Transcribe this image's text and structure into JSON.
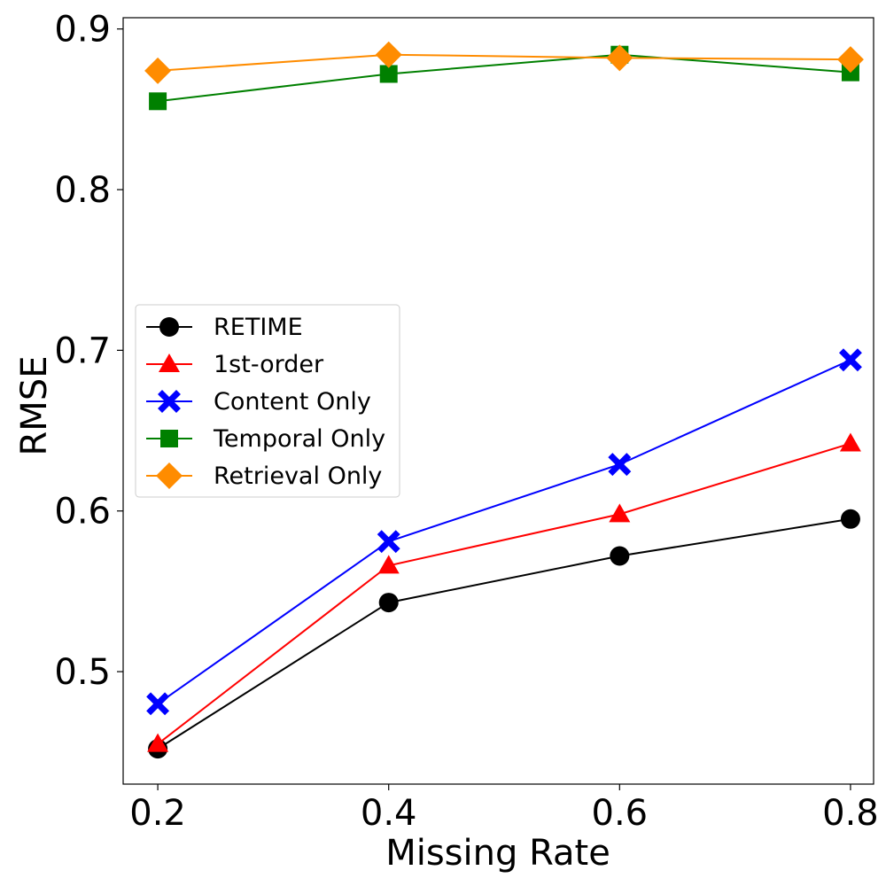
{
  "chart_data": {
    "type": "line",
    "title": "",
    "xlabel": "Missing Rate",
    "ylabel": "RMSE",
    "x": [
      0.2,
      0.4,
      0.6,
      0.8
    ],
    "xticks": [
      "0.2",
      "0.4",
      "0.6",
      "0.8"
    ],
    "yticks": [
      "0.5",
      "0.6",
      "0.7",
      "0.8",
      "0.9"
    ],
    "ytick_values": [
      0.5,
      0.6,
      0.7,
      0.8,
      0.9
    ],
    "xlim": [
      0.17,
      0.82
    ],
    "ylim": [
      0.43,
      0.907
    ],
    "grid": false,
    "legend_position": "center-left",
    "series": [
      {
        "name": "RETIME",
        "color": "#000000",
        "marker": "circle",
        "values": [
          0.452,
          0.543,
          0.572,
          0.595
        ]
      },
      {
        "name": "1st-order",
        "color": "#ff0000",
        "marker": "triangle",
        "values": [
          0.455,
          0.566,
          0.598,
          0.642
        ]
      },
      {
        "name": "Content Only",
        "color": "#0000ff",
        "marker": "x",
        "values": [
          0.48,
          0.581,
          0.629,
          0.694
        ]
      },
      {
        "name": "Temporal Only",
        "color": "#008000",
        "marker": "square",
        "values": [
          0.855,
          0.872,
          0.884,
          0.873
        ]
      },
      {
        "name": "Retrieval Only",
        "color": "#ff8c00",
        "marker": "diamond",
        "values": [
          0.874,
          0.884,
          0.882,
          0.881
        ]
      }
    ]
  }
}
